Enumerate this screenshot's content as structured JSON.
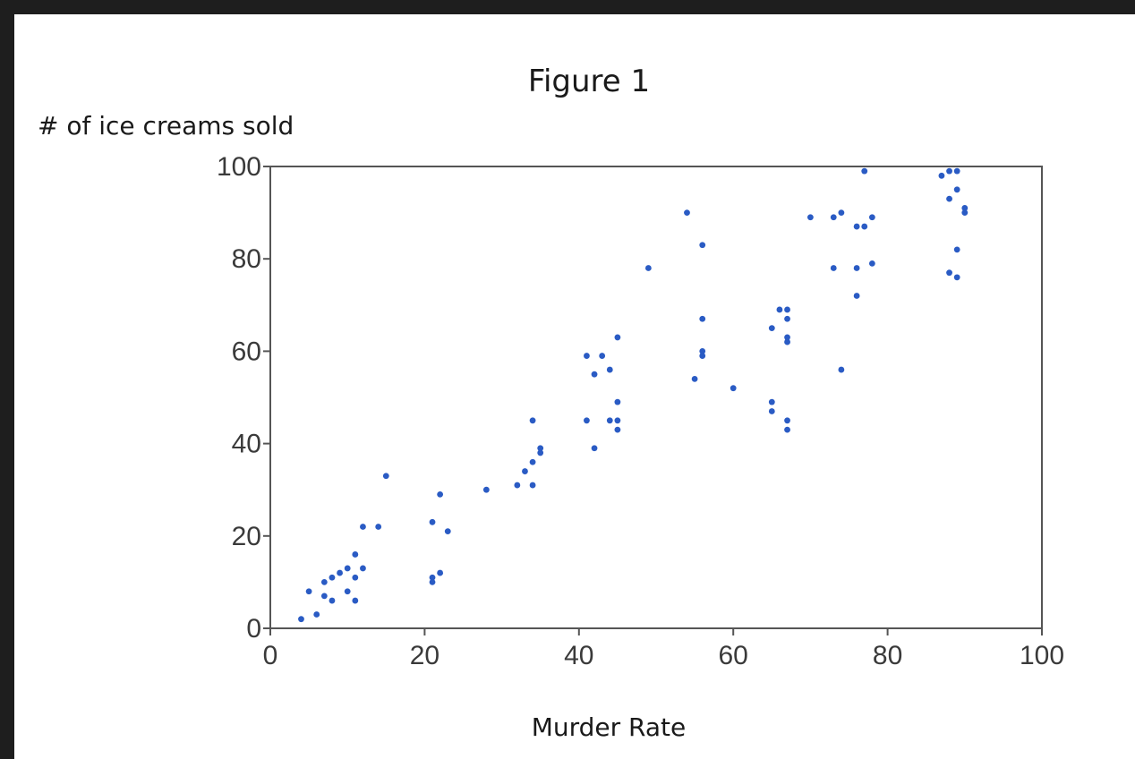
{
  "chart_data": {
    "type": "scatter",
    "title": "Figure 1",
    "xlabel": "Murder Rate",
    "ylabel": "# of ice creams sold",
    "xlim": [
      0,
      100
    ],
    "ylim": [
      0,
      100
    ],
    "xticks": [
      "0",
      "20",
      "40",
      "60",
      "80",
      "100"
    ],
    "yticks": [
      "0",
      "20",
      "40",
      "60",
      "80",
      "100"
    ],
    "grid": false,
    "point_color": "#2a5bc4",
    "points": [
      [
        4,
        2
      ],
      [
        5,
        8
      ],
      [
        6,
        3
      ],
      [
        7,
        10
      ],
      [
        7,
        7
      ],
      [
        8,
        11
      ],
      [
        8,
        6
      ],
      [
        9,
        12
      ],
      [
        10,
        13
      ],
      [
        10,
        8
      ],
      [
        11,
        16
      ],
      [
        11,
        11
      ],
      [
        11,
        6
      ],
      [
        12,
        13
      ],
      [
        12,
        22
      ],
      [
        14,
        22
      ],
      [
        15,
        33
      ],
      [
        21,
        23
      ],
      [
        21,
        11
      ],
      [
        21,
        10
      ],
      [
        22,
        29
      ],
      [
        22,
        12
      ],
      [
        23,
        21
      ],
      [
        28,
        30
      ],
      [
        32,
        31
      ],
      [
        33,
        34
      ],
      [
        34,
        36
      ],
      [
        34,
        45
      ],
      [
        34,
        31
      ],
      [
        35,
        38
      ],
      [
        35,
        39
      ],
      [
        41,
        59
      ],
      [
        41,
        45
      ],
      [
        42,
        55
      ],
      [
        42,
        39
      ],
      [
        43,
        59
      ],
      [
        44,
        56
      ],
      [
        44,
        45
      ],
      [
        45,
        63
      ],
      [
        45,
        49
      ],
      [
        45,
        45
      ],
      [
        45,
        43
      ],
      [
        49,
        78
      ],
      [
        54,
        90
      ],
      [
        55,
        54
      ],
      [
        56,
        83
      ],
      [
        56,
        67
      ],
      [
        56,
        60
      ],
      [
        56,
        59
      ],
      [
        60,
        52
      ],
      [
        65,
        65
      ],
      [
        65,
        49
      ],
      [
        65,
        47
      ],
      [
        66,
        69
      ],
      [
        67,
        69
      ],
      [
        67,
        67
      ],
      [
        67,
        63
      ],
      [
        67,
        62
      ],
      [
        67,
        45
      ],
      [
        67,
        43
      ],
      [
        70,
        89
      ],
      [
        73,
        89
      ],
      [
        73,
        78
      ],
      [
        74,
        90
      ],
      [
        74,
        56
      ],
      [
        76,
        87
      ],
      [
        76,
        78
      ],
      [
        76,
        72
      ],
      [
        77,
        87
      ],
      [
        77,
        99
      ],
      [
        78,
        89
      ],
      [
        78,
        79
      ],
      [
        87,
        98
      ],
      [
        88,
        99
      ],
      [
        88,
        93
      ],
      [
        88,
        77
      ],
      [
        89,
        99
      ],
      [
        89,
        95
      ],
      [
        89,
        82
      ],
      [
        89,
        76
      ],
      [
        90,
        91
      ],
      [
        90,
        90
      ]
    ]
  }
}
